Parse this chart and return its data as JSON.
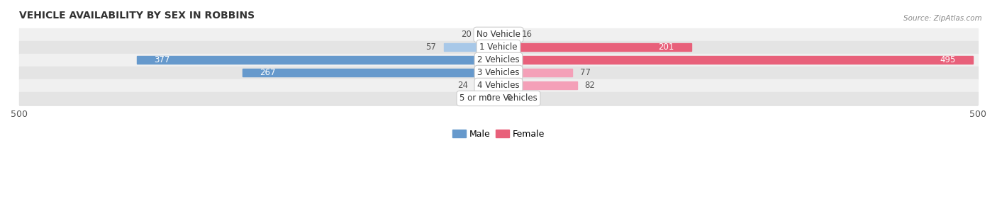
{
  "title": "VEHICLE AVAILABILITY BY SEX IN ROBBINS",
  "source": "Source: ZipAtlas.com",
  "categories": [
    "No Vehicle",
    "1 Vehicle",
    "2 Vehicles",
    "3 Vehicles",
    "4 Vehicles",
    "5 or more Vehicles"
  ],
  "male_values": [
    20,
    57,
    377,
    267,
    24,
    0
  ],
  "female_values": [
    16,
    201,
    495,
    77,
    82,
    0
  ],
  "male_color_light": "#a8c8e8",
  "male_color_dark": "#6699cc",
  "female_color_light": "#f4a0b8",
  "female_color_dark": "#e8607a",
  "row_bg_even": "#f0f0f0",
  "row_bg_odd": "#e4e4e4",
  "axis_max": 500,
  "legend_male": "Male",
  "legend_female": "Female",
  "label_threshold": 100
}
